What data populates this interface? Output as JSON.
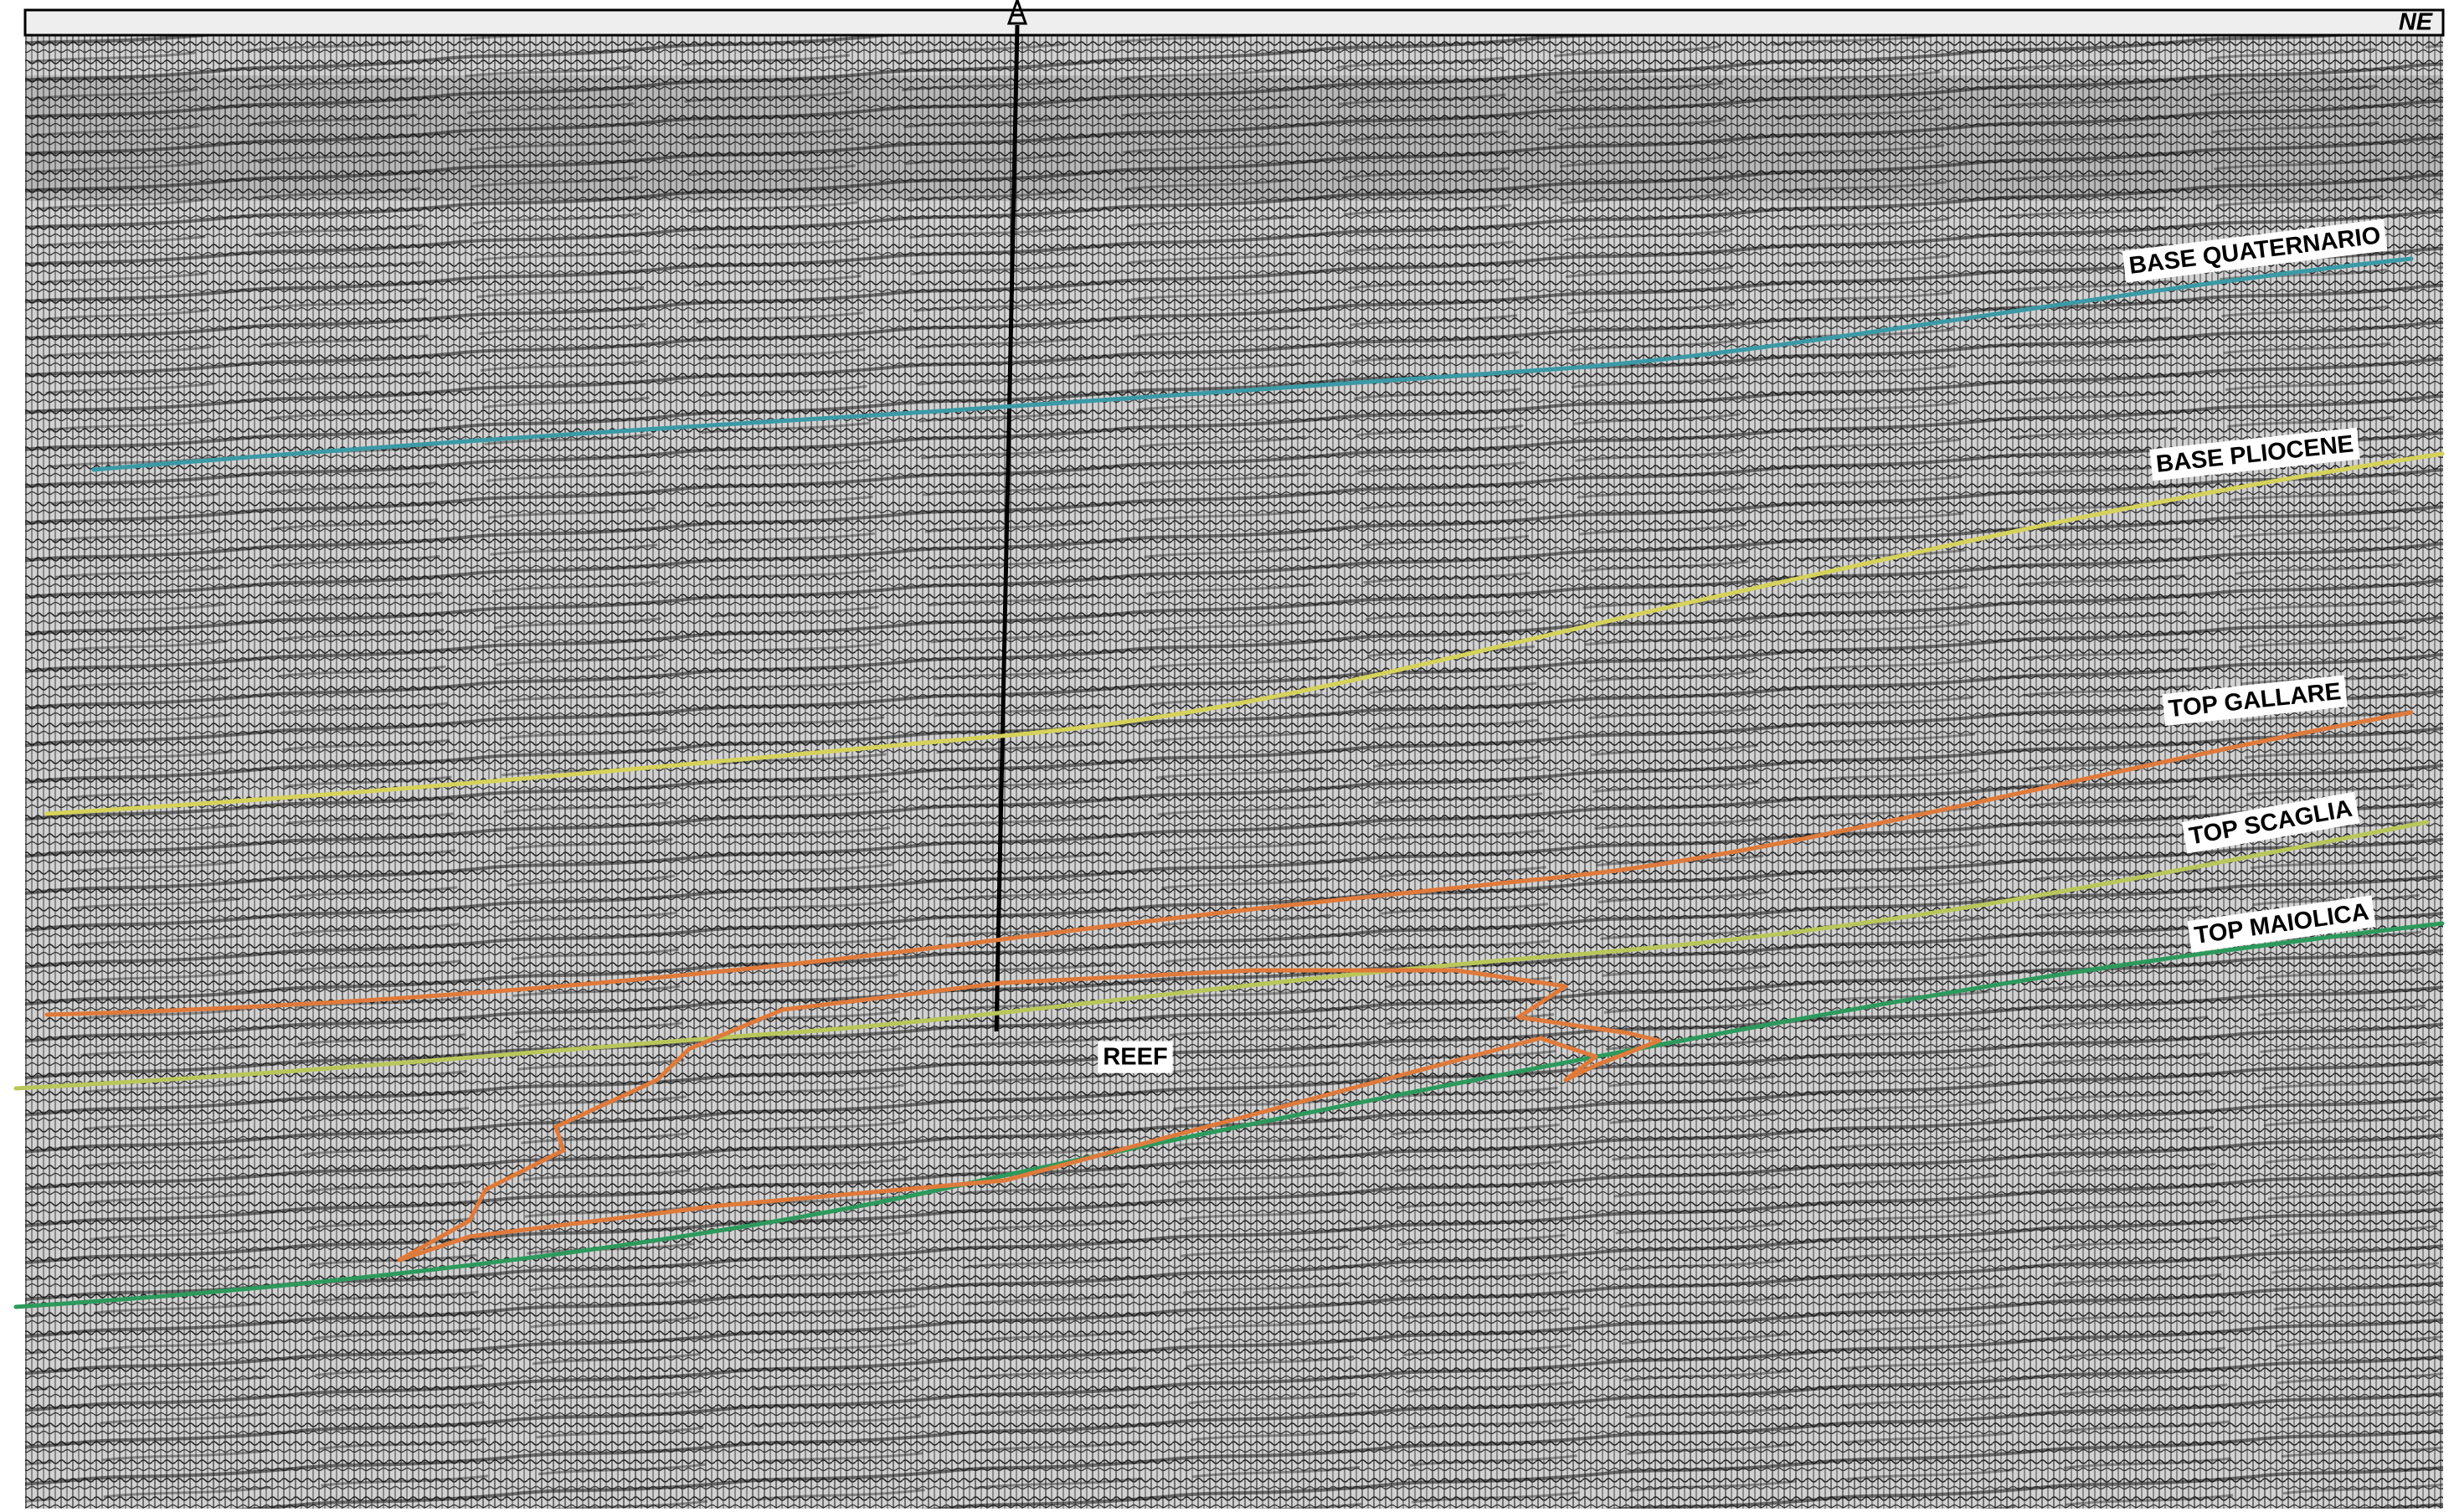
{
  "orientation": "NE",
  "horizons": [
    {
      "label": "BASE QUATERNARIO"
    },
    {
      "label": "BASE PLIOCENE"
    },
    {
      "label": "TOP GALLARE"
    },
    {
      "label": "TOP SCAGLIA"
    },
    {
      "label": "TOP MAIOLICA"
    }
  ],
  "features": [
    {
      "label": "REEF"
    }
  ]
}
